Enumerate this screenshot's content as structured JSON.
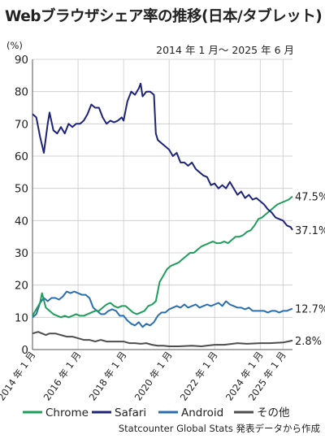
{
  "chart_data": {
    "type": "line",
    "title": "Webブラウザシェア率の推移(日本/タブレット)",
    "period": "2014 年 1 月～ 2025 年 6 月",
    "y_unit": "(%)",
    "ylim": [
      0,
      90
    ],
    "yticks": [
      0,
      10,
      20,
      30,
      40,
      50,
      60,
      70,
      80,
      90
    ],
    "x_range": [
      "2014-01",
      "2025-06"
    ],
    "xticks": [
      {
        "date": "2014-01",
        "label": "2014 年 1 月"
      },
      {
        "date": "2016-01",
        "label": "2016 年 1 月"
      },
      {
        "date": "2018-01",
        "label": "2018 年 1 月"
      },
      {
        "date": "2020-01",
        "label": "2020 年 1 月"
      },
      {
        "date": "2022-01",
        "label": "2022 年 1 月"
      },
      {
        "date": "2024-01",
        "label": "2024 年 1 月"
      },
      {
        "date": "2025-01",
        "label": "2025 年 1 月"
      }
    ],
    "grid": true,
    "legend_position": "bottom",
    "source": "Statcounter Global Stats 発表データから作成",
    "series": [
      {
        "name": "Safari",
        "color": "#1d2378",
        "end_label": "37.1%",
        "points": [
          [
            "2014-01",
            73.0
          ],
          [
            "2014-03",
            72.0
          ],
          [
            "2014-05",
            66.0
          ],
          [
            "2014-07",
            61.0
          ],
          [
            "2014-09",
            70.0
          ],
          [
            "2014-10",
            73.5
          ],
          [
            "2014-12",
            68.0
          ],
          [
            "2015-02",
            67.0
          ],
          [
            "2015-04",
            69.0
          ],
          [
            "2015-06",
            67.0
          ],
          [
            "2015-08",
            70.0
          ],
          [
            "2015-10",
            69.0
          ],
          [
            "2015-12",
            70.0
          ],
          [
            "2016-02",
            70.0
          ],
          [
            "2016-04",
            71.0
          ],
          [
            "2016-06",
            73.0
          ],
          [
            "2016-08",
            76.0
          ],
          [
            "2016-10",
            75.0
          ],
          [
            "2016-12",
            75.0
          ],
          [
            "2017-02",
            72.0
          ],
          [
            "2017-04",
            70.0
          ],
          [
            "2017-06",
            71.0
          ],
          [
            "2017-08",
            70.5
          ],
          [
            "2017-10",
            71.0
          ],
          [
            "2017-12",
            72.0
          ],
          [
            "2018-01",
            71.0
          ],
          [
            "2018-03",
            77.0
          ],
          [
            "2018-05",
            80.0
          ],
          [
            "2018-07",
            79.0
          ],
          [
            "2018-09",
            81.0
          ],
          [
            "2018-10",
            82.5
          ],
          [
            "2018-11",
            78.5
          ],
          [
            "2019-01",
            80.0
          ],
          [
            "2019-03",
            80.0
          ],
          [
            "2019-05",
            79.0
          ],
          [
            "2019-06",
            67.0
          ],
          [
            "2019-07",
            65.0
          ],
          [
            "2019-09",
            64.0
          ],
          [
            "2019-11",
            63.0
          ],
          [
            "2020-01",
            62.0
          ],
          [
            "2020-03",
            60.0
          ],
          [
            "2020-05",
            61.0
          ],
          [
            "2020-07",
            58.0
          ],
          [
            "2020-09",
            58.0
          ],
          [
            "2020-11",
            57.0
          ],
          [
            "2021-01",
            58.0
          ],
          [
            "2021-03",
            56.0
          ],
          [
            "2021-05",
            55.0
          ],
          [
            "2021-07",
            54.0
          ],
          [
            "2021-09",
            53.5
          ],
          [
            "2021-11",
            51.0
          ],
          [
            "2022-01",
            51.5
          ],
          [
            "2022-03",
            50.0
          ],
          [
            "2022-05",
            51.0
          ],
          [
            "2022-07",
            50.0
          ],
          [
            "2022-09",
            52.0
          ],
          [
            "2022-11",
            50.0
          ],
          [
            "2023-01",
            48.0
          ],
          [
            "2023-03",
            49.0
          ],
          [
            "2023-05",
            47.0
          ],
          [
            "2023-07",
            48.0
          ],
          [
            "2023-09",
            46.5
          ],
          [
            "2023-11",
            47.0
          ],
          [
            "2024-01",
            46.0
          ],
          [
            "2024-03",
            45.0
          ],
          [
            "2024-05",
            43.5
          ],
          [
            "2024-07",
            42.5
          ],
          [
            "2024-09",
            41.0
          ],
          [
            "2024-11",
            40.5
          ],
          [
            "2025-01",
            40.0
          ],
          [
            "2025-03",
            38.5
          ],
          [
            "2025-05",
            38.0
          ],
          [
            "2025-06",
            37.1
          ]
        ]
      },
      {
        "name": "Chrome",
        "color": "#1e9e5a",
        "end_label": "47.5%",
        "points": [
          [
            "2014-01",
            10.5
          ],
          [
            "2014-03",
            12.5
          ],
          [
            "2014-05",
            14.5
          ],
          [
            "2014-06",
            17.5
          ],
          [
            "2014-08",
            13.0
          ],
          [
            "2014-10",
            12.0
          ],
          [
            "2014-12",
            11.0
          ],
          [
            "2015-02",
            10.5
          ],
          [
            "2015-04",
            10.0
          ],
          [
            "2015-06",
            10.5
          ],
          [
            "2015-08",
            10.0
          ],
          [
            "2015-10",
            10.5
          ],
          [
            "2015-12",
            11.0
          ],
          [
            "2016-02",
            10.5
          ],
          [
            "2016-04",
            10.5
          ],
          [
            "2016-06",
            11.0
          ],
          [
            "2016-08",
            11.5
          ],
          [
            "2016-10",
            12.0
          ],
          [
            "2016-12",
            12.0
          ],
          [
            "2017-02",
            13.0
          ],
          [
            "2017-04",
            14.0
          ],
          [
            "2017-06",
            14.5
          ],
          [
            "2017-08",
            13.5
          ],
          [
            "2017-10",
            13.0
          ],
          [
            "2017-12",
            13.5
          ],
          [
            "2018-02",
            13.5
          ],
          [
            "2018-04",
            12.5
          ],
          [
            "2018-06",
            11.5
          ],
          [
            "2018-08",
            11.0
          ],
          [
            "2018-10",
            11.5
          ],
          [
            "2018-12",
            12.0
          ],
          [
            "2019-02",
            13.5
          ],
          [
            "2019-04",
            14.0
          ],
          [
            "2019-06",
            15.0
          ],
          [
            "2019-08",
            21.0
          ],
          [
            "2019-10",
            23.0
          ],
          [
            "2019-12",
            25.0
          ],
          [
            "2020-02",
            26.0
          ],
          [
            "2020-04",
            26.5
          ],
          [
            "2020-06",
            27.0
          ],
          [
            "2020-08",
            28.0
          ],
          [
            "2020-10",
            29.0
          ],
          [
            "2020-12",
            30.0
          ],
          [
            "2021-02",
            30.0
          ],
          [
            "2021-04",
            31.0
          ],
          [
            "2021-06",
            32.0
          ],
          [
            "2021-08",
            32.5
          ],
          [
            "2021-10",
            33.0
          ],
          [
            "2021-12",
            33.5
          ],
          [
            "2022-02",
            33.0
          ],
          [
            "2022-04",
            33.0
          ],
          [
            "2022-06",
            33.5
          ],
          [
            "2022-08",
            33.0
          ],
          [
            "2022-10",
            34.0
          ],
          [
            "2022-12",
            35.0
          ],
          [
            "2023-02",
            35.0
          ],
          [
            "2023-04",
            35.5
          ],
          [
            "2023-06",
            36.5
          ],
          [
            "2023-08",
            37.0
          ],
          [
            "2023-10",
            38.5
          ],
          [
            "2023-12",
            40.5
          ],
          [
            "2024-02",
            41.0
          ],
          [
            "2024-04",
            42.0
          ],
          [
            "2024-06",
            43.0
          ],
          [
            "2024-08",
            44.0
          ],
          [
            "2024-10",
            45.0
          ],
          [
            "2024-12",
            45.5
          ],
          [
            "2025-02",
            46.0
          ],
          [
            "2025-04",
            46.5
          ],
          [
            "2025-06",
            47.5
          ]
        ]
      },
      {
        "name": "Android",
        "color": "#2a6fb0",
        "end_label": "12.7%",
        "points": [
          [
            "2014-01",
            10.0
          ],
          [
            "2014-03",
            11.0
          ],
          [
            "2014-05",
            14.5
          ],
          [
            "2014-07",
            16.0
          ],
          [
            "2014-09",
            15.0
          ],
          [
            "2014-11",
            16.0
          ],
          [
            "2015-01",
            16.0
          ],
          [
            "2015-03",
            15.5
          ],
          [
            "2015-05",
            16.5
          ],
          [
            "2015-07",
            18.0
          ],
          [
            "2015-09",
            17.5
          ],
          [
            "2015-11",
            18.0
          ],
          [
            "2016-01",
            17.5
          ],
          [
            "2016-03",
            17.0
          ],
          [
            "2016-05",
            17.0
          ],
          [
            "2016-07",
            16.0
          ],
          [
            "2016-09",
            13.0
          ],
          [
            "2016-11",
            12.0
          ],
          [
            "2017-01",
            11.0
          ],
          [
            "2017-03",
            11.0
          ],
          [
            "2017-05",
            12.0
          ],
          [
            "2017-07",
            12.5
          ],
          [
            "2017-09",
            12.0
          ],
          [
            "2017-11",
            10.5
          ],
          [
            "2018-01",
            10.5
          ],
          [
            "2018-03",
            9.0
          ],
          [
            "2018-05",
            8.0
          ],
          [
            "2018-07",
            7.5
          ],
          [
            "2018-09",
            8.5
          ],
          [
            "2018-11",
            7.0
          ],
          [
            "2019-01",
            8.0
          ],
          [
            "2019-03",
            7.5
          ],
          [
            "2019-05",
            8.5
          ],
          [
            "2019-07",
            10.5
          ],
          [
            "2019-09",
            11.5
          ],
          [
            "2019-11",
            11.5
          ],
          [
            "2020-01",
            12.5
          ],
          [
            "2020-03",
            13.0
          ],
          [
            "2020-05",
            13.5
          ],
          [
            "2020-07",
            13.0
          ],
          [
            "2020-09",
            14.0
          ],
          [
            "2020-11",
            13.0
          ],
          [
            "2021-01",
            13.5
          ],
          [
            "2021-03",
            14.0
          ],
          [
            "2021-05",
            13.0
          ],
          [
            "2021-07",
            13.5
          ],
          [
            "2021-09",
            14.0
          ],
          [
            "2021-11",
            13.5
          ],
          [
            "2022-01",
            14.0
          ],
          [
            "2022-03",
            14.5
          ],
          [
            "2022-05",
            13.5
          ],
          [
            "2022-07",
            15.0
          ],
          [
            "2022-09",
            14.0
          ],
          [
            "2022-11",
            13.5
          ],
          [
            "2023-01",
            13.0
          ],
          [
            "2023-03",
            13.0
          ],
          [
            "2023-05",
            12.5
          ],
          [
            "2023-07",
            13.0
          ],
          [
            "2023-09",
            12.0
          ],
          [
            "2023-11",
            12.0
          ],
          [
            "2024-01",
            12.0
          ],
          [
            "2024-03",
            12.0
          ],
          [
            "2024-05",
            11.5
          ],
          [
            "2024-07",
            12.0
          ],
          [
            "2024-09",
            12.0
          ],
          [
            "2024-11",
            11.5
          ],
          [
            "2025-01",
            12.0
          ],
          [
            "2025-03",
            12.0
          ],
          [
            "2025-05",
            12.5
          ],
          [
            "2025-06",
            12.7
          ]
        ]
      },
      {
        "name": "その他",
        "color": "#4d4d4d",
        "end_label": "2.8%",
        "points": [
          [
            "2014-01",
            5.0
          ],
          [
            "2014-04",
            5.5
          ],
          [
            "2014-06",
            5.0
          ],
          [
            "2014-08",
            4.5
          ],
          [
            "2014-10",
            5.0
          ],
          [
            "2015-01",
            5.0
          ],
          [
            "2015-04",
            4.5
          ],
          [
            "2015-07",
            4.0
          ],
          [
            "2015-10",
            4.0
          ],
          [
            "2016-01",
            3.5
          ],
          [
            "2016-04",
            3.0
          ],
          [
            "2016-07",
            3.0
          ],
          [
            "2016-10",
            2.5
          ],
          [
            "2017-01",
            3.0
          ],
          [
            "2017-04",
            2.5
          ],
          [
            "2017-07",
            2.5
          ],
          [
            "2017-10",
            2.5
          ],
          [
            "2018-01",
            2.5
          ],
          [
            "2018-04",
            2.0
          ],
          [
            "2018-07",
            2.0
          ],
          [
            "2018-10",
            1.8
          ],
          [
            "2019-01",
            2.0
          ],
          [
            "2019-04",
            1.5
          ],
          [
            "2019-07",
            1.2
          ],
          [
            "2019-10",
            1.2
          ],
          [
            "2020-01",
            1.0
          ],
          [
            "2020-06",
            1.0
          ],
          [
            "2021-01",
            1.2
          ],
          [
            "2021-06",
            1.0
          ],
          [
            "2022-01",
            1.5
          ],
          [
            "2022-06",
            1.5
          ],
          [
            "2023-01",
            2.0
          ],
          [
            "2023-06",
            1.8
          ],
          [
            "2024-01",
            2.0
          ],
          [
            "2024-06",
            2.0
          ],
          [
            "2025-01",
            2.2
          ],
          [
            "2025-06",
            2.8
          ]
        ]
      }
    ],
    "legend_order": [
      "Chrome",
      "Safari",
      "Android",
      "その他"
    ]
  }
}
